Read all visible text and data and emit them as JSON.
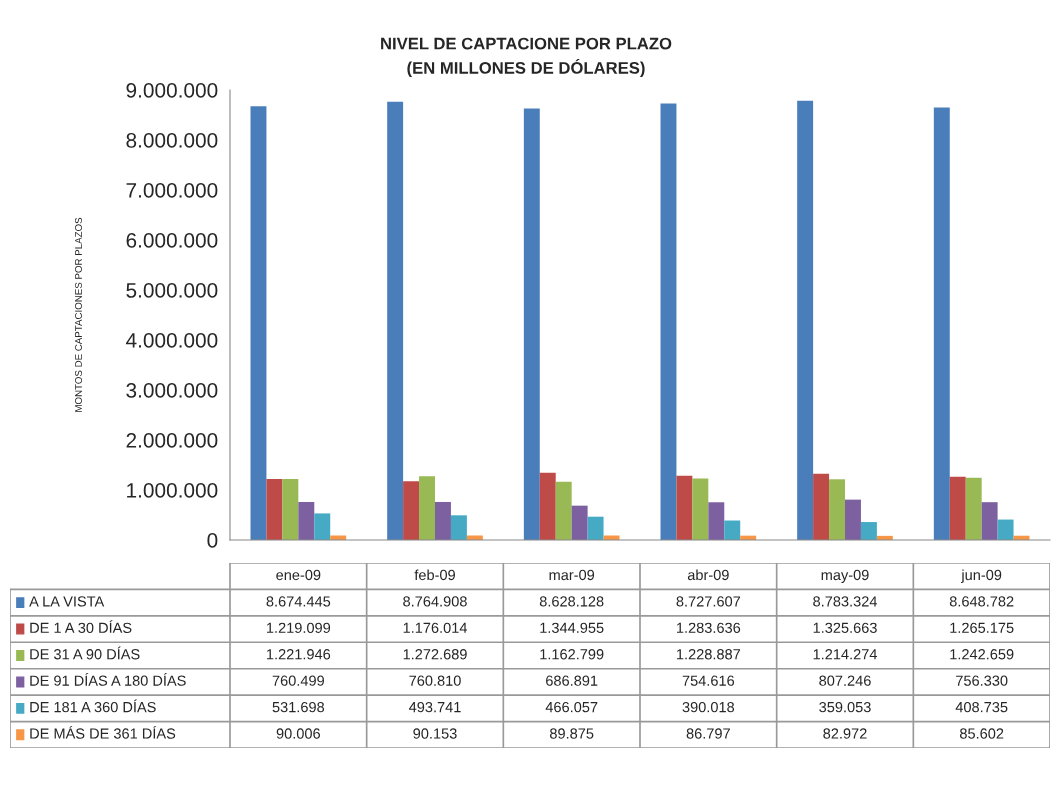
{
  "chart_data": {
    "type": "bar",
    "title": "NIVEL DE CAPTACIONE POR PLAZO",
    "subtitle": "(EN MILLONES DE DÓLARES)",
    "ylabel": "MONTOS DE CAPTACIONES POR PLAZOS",
    "categories": [
      "ene-09",
      "feb-09",
      "mar-09",
      "abr-09",
      "may-09",
      "jun-09"
    ],
    "series": [
      {
        "name": "A LA VISTA",
        "color": "#4a7ebb",
        "values": [
          8674445,
          8764908,
          8628128,
          8727607,
          8783324,
          8648782
        ],
        "value_labels": [
          "8.674.445",
          "8.764.908",
          "8.628.128",
          "8.727.607",
          "8.783.324",
          "8.648.782"
        ]
      },
      {
        "name": "DE 1 A 30 DÍAS",
        "color": "#be4b48",
        "values": [
          1219099,
          1176014,
          1344955,
          1283636,
          1325663,
          1265175
        ],
        "value_labels": [
          "1.219.099",
          "1.176.014",
          "1.344.955",
          "1.283.636",
          "1.325.663",
          "1.265.175"
        ]
      },
      {
        "name": "DE 31 A 90 DÍAS",
        "color": "#98b954",
        "values": [
          1221946,
          1272689,
          1162799,
          1228887,
          1214274,
          1242659
        ],
        "value_labels": [
          "1.221.946",
          "1.272.689",
          "1.162.799",
          "1.228.887",
          "1.214.274",
          "1.242.659"
        ]
      },
      {
        "name": "DE 91 DÍAS A 180 DÍAS",
        "color": "#7d60a0",
        "values": [
          760499,
          760810,
          686891,
          754616,
          807246,
          756330
        ],
        "value_labels": [
          "760.499",
          "760.810",
          "686.891",
          "754.616",
          "807.246",
          "756.330"
        ]
      },
      {
        "name": "DE 181 A 360 DÍAS",
        "color": "#46aac5",
        "values": [
          531698,
          493741,
          466057,
          390018,
          359053,
          408735
        ],
        "value_labels": [
          "531.698",
          "493.741",
          "466.057",
          "390.018",
          "359.053",
          "408.735"
        ]
      },
      {
        "name": "DE MÁS DE 361 DÍAS",
        "color": "#f79646",
        "values": [
          90006,
          90153,
          89875,
          86797,
          82972,
          85602
        ],
        "value_labels": [
          "90.006",
          "90.153",
          "89.875",
          "86.797",
          "82.972",
          "85.602"
        ]
      }
    ],
    "ylim": [
      0,
      9000000
    ],
    "yticks": [
      {
        "value": 0,
        "label": "0"
      },
      {
        "value": 1000000,
        "label": "1.000.000"
      },
      {
        "value": 2000000,
        "label": "2.000.000"
      },
      {
        "value": 3000000,
        "label": "3.000.000"
      },
      {
        "value": 4000000,
        "label": "4.000.000"
      },
      {
        "value": 5000000,
        "label": "5.000.000"
      },
      {
        "value": 6000000,
        "label": "6.000.000"
      },
      {
        "value": 7000000,
        "label": "7.000.000"
      },
      {
        "value": 8000000,
        "label": "8.000.000"
      },
      {
        "value": 9000000,
        "label": "9.000.000"
      }
    ],
    "legend": "bottom",
    "grid": false
  }
}
